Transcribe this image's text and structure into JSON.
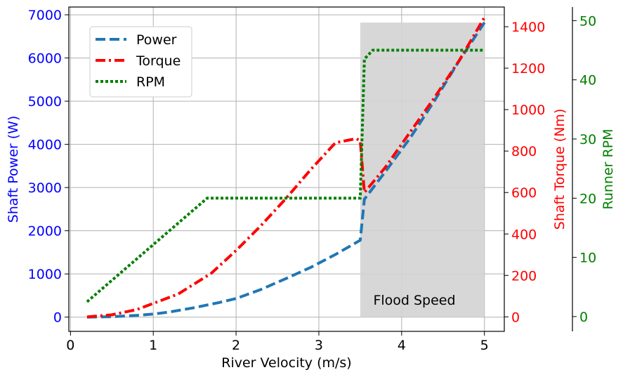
{
  "chart_data": {
    "type": "line",
    "xlabel": "River Velocity (m/s)",
    "x_ticks": [
      "0",
      "1",
      "2",
      "3",
      "4",
      "5"
    ],
    "xlim": [
      -0.02,
      5.24
    ],
    "axes": {
      "left": {
        "label": "Shaft Power (W)",
        "color": "#0000ff",
        "ylim": [
          -330,
          7180
        ],
        "ticks": [
          "0",
          "1000",
          "2000",
          "3000",
          "4000",
          "5000",
          "6000",
          "7000"
        ]
      },
      "right1": {
        "label": "Shaft Torque (Nm)",
        "color": "#ff0000",
        "ylim": [
          -70,
          1495
        ],
        "ticks": [
          "0",
          "200",
          "400",
          "600",
          "800",
          "1000",
          "1200",
          "1400"
        ]
      },
      "right2": {
        "label": "Runner RPM",
        "color": "#008000",
        "ylim": [
          -2.5,
          52.3
        ],
        "ticks": [
          "0",
          "10",
          "20",
          "30",
          "40",
          "50"
        ]
      }
    },
    "series": [
      {
        "name": "Power",
        "axis": "left",
        "color": "#1f77b4",
        "style": "dashed",
        "x": [
          0.2,
          0.5,
          0.8,
          1.0,
          1.2,
          1.5,
          1.8,
          2.0,
          2.3,
          2.6,
          2.9,
          3.2,
          3.5,
          3.55,
          3.8,
          4.1,
          4.4,
          4.7,
          5.0
        ],
        "y": [
          0,
          10,
          40,
          70,
          120,
          220,
          340,
          430,
          640,
          890,
          1150,
          1450,
          1780,
          2730,
          3360,
          4140,
          5020,
          5950,
          6820
        ]
      },
      {
        "name": "Torque",
        "axis": "right1",
        "color": "#ff0000",
        "style": "dashdot",
        "x": [
          0.2,
          0.5,
          0.8,
          1.0,
          1.3,
          1.7,
          2.0,
          2.3,
          2.6,
          2.9,
          3.2,
          3.45,
          3.5,
          3.55,
          3.8,
          4.1,
          4.4,
          4.7,
          5.0
        ],
        "y": [
          0,
          10,
          35,
          65,
          110,
          210,
          320,
          440,
          570,
          710,
          840,
          860,
          850,
          600,
          720,
          890,
          1060,
          1240,
          1445
        ]
      },
      {
        "name": "RPM",
        "axis": "right2",
        "color": "#008000",
        "style": "dotted",
        "x": [
          0.2,
          1.65,
          3.5,
          3.55,
          3.65,
          3.75,
          5.0
        ],
        "y": [
          2.5,
          20,
          20,
          43.5,
          45,
          45,
          45
        ]
      }
    ],
    "legend": {
      "placement": "upper-left",
      "entries": [
        "Power",
        "Torque",
        "RPM"
      ]
    },
    "shaded_region": {
      "x": [
        3.5,
        5.0
      ],
      "y": [
        0,
        6820
      ],
      "color": "#d3d3d3",
      "label": "Flood Speed"
    },
    "grid": true
  }
}
